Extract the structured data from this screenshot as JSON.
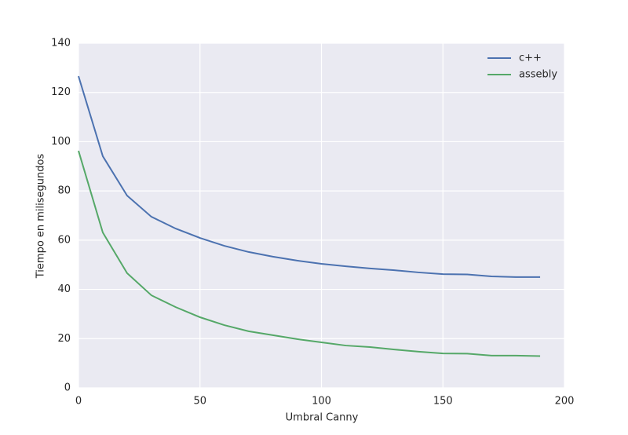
{
  "chart_data": {
    "type": "line",
    "x_label": "Umbral Canny",
    "y_label": "Tiempo en milisegundos",
    "x": [
      0,
      10,
      20,
      30,
      40,
      50,
      60,
      70,
      80,
      90,
      100,
      110,
      120,
      130,
      140,
      150,
      160,
      170,
      180,
      190
    ],
    "series": [
      {
        "name": "c++",
        "color": "#4c72b0",
        "values": [
          126.6,
          94.1,
          78.1,
          69.5,
          64.7,
          60.9,
          57.7,
          55.2,
          53.3,
          51.7,
          50.4,
          49.4,
          48.5,
          47.8,
          46.9,
          46.2,
          46.1,
          45.3,
          45.0,
          45.0
        ]
      },
      {
        "name": "assebly",
        "color": "#55a868",
        "values": [
          96.3,
          63.1,
          46.6,
          37.6,
          32.8,
          28.7,
          25.5,
          23.0,
          21.4,
          19.8,
          18.5,
          17.2,
          16.6,
          15.6,
          14.7,
          14.0,
          13.9,
          13.1,
          13.1,
          12.9
        ]
      }
    ],
    "xlim": [
      0,
      200
    ],
    "xticks": [
      0,
      50,
      100,
      150,
      200
    ],
    "ylim": [
      0,
      140
    ],
    "yticks": [
      0,
      20,
      40,
      60,
      80,
      100,
      120,
      140
    ],
    "grid": true,
    "legend": "upper right"
  }
}
